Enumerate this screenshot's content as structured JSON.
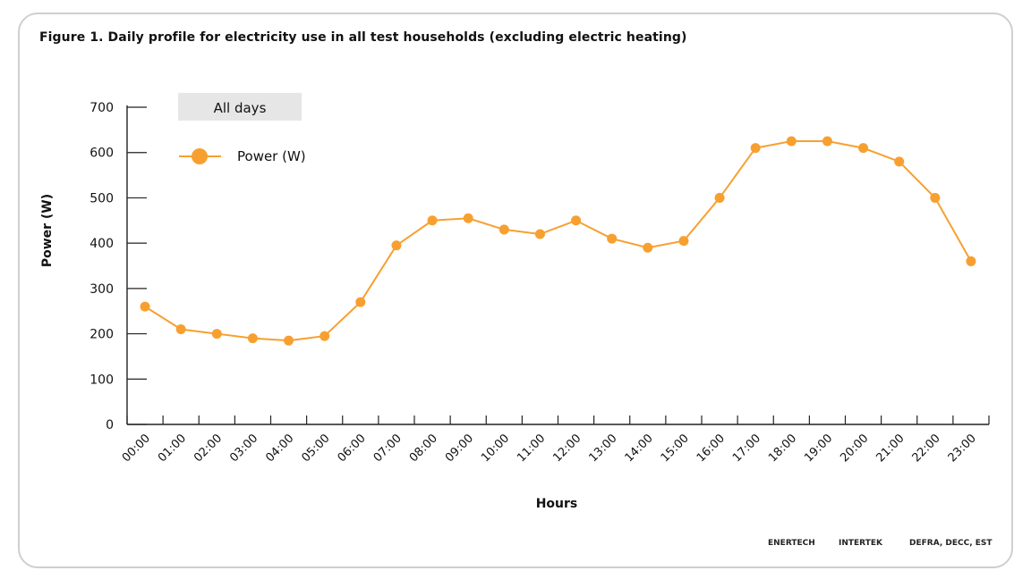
{
  "figure_title": "Figure 1. Daily profile for electricity use in all test households (excluding electric heating)",
  "legend_box_label": "All days",
  "footer": {
    "credit_1": "ENERTECH",
    "credit_2": "INTERTEK",
    "credit_3": "DEFRA, DECC, EST"
  },
  "colors": {
    "series": "#f7a030",
    "axis": "#222222",
    "legend_box": "#e6e6e6"
  },
  "chart_data": {
    "type": "line",
    "title": "Figure 1. Daily profile for electricity use in all test households (excluding electric heating)",
    "xlabel": "Hours",
    "ylabel": "Power (W)",
    "ylim": [
      0,
      700
    ],
    "yticks": [
      0,
      100,
      200,
      300,
      400,
      500,
      600,
      700
    ],
    "grid": false,
    "legend_position": "top-left",
    "categories": [
      "00:00",
      "01:00",
      "02:00",
      "03:00",
      "04:00",
      "05:00",
      "06:00",
      "07:00",
      "08:00",
      "09:00",
      "10:00",
      "11:00",
      "12:00",
      "13:00",
      "14:00",
      "15:00",
      "16:00",
      "17:00",
      "18:00",
      "19:00",
      "20:00",
      "21:00",
      "22:00",
      "23:00"
    ],
    "series": [
      {
        "name": "Power (W)",
        "values": [
          260,
          210,
          200,
          190,
          185,
          195,
          270,
          395,
          450,
          455,
          430,
          420,
          450,
          410,
          390,
          405,
          500,
          610,
          625,
          625,
          610,
          580,
          500,
          360
        ]
      }
    ]
  }
}
